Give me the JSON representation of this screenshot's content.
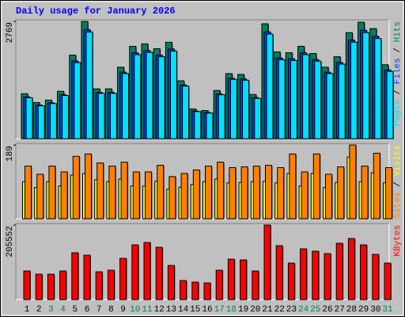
{
  "chart_data": [
    {
      "type": "bar",
      "title": "Daily usage for January 2026",
      "categories": [
        "1",
        "2",
        "3",
        "4",
        "5",
        "6",
        "7",
        "8",
        "9",
        "10",
        "11",
        "12",
        "13",
        "14",
        "15",
        "16",
        "17",
        "18",
        "19",
        "20",
        "21",
        "22",
        "23",
        "24",
        "25",
        "26",
        "27",
        "28",
        "29",
        "30",
        "31"
      ],
      "category_colors": [
        "#000000",
        "#000000",
        "#00805c",
        "#00805c",
        "#000000",
        "#000000",
        "#000000",
        "#000000",
        "#000000",
        "#00805c",
        "#00805c",
        "#000000",
        "#000000",
        "#000000",
        "#000000",
        "#000000",
        "#00805c",
        "#00805c",
        "#000000",
        "#000000",
        "#000000",
        "#000000",
        "#000000",
        "#00805c",
        "#00805c",
        "#000000",
        "#000000",
        "#000000",
        "#000000",
        "#000000",
        "#00805c"
      ],
      "legend_separator": "/",
      "ylim": [
        0,
        2769
      ],
      "yticks": [
        2769
      ],
      "series": [
        {
          "name": "Hits",
          "color": "#00805c",
          "values": [
            1062,
            853,
            910,
            1119,
            1972,
            2769,
            1176,
            1176,
            1688,
            2181,
            2238,
            2124,
            2276,
            1366,
            702,
            664,
            1138,
            1536,
            1517,
            1043,
            2712,
            2048,
            2029,
            2181,
            2010,
            1688,
            1934,
            2503,
            2750,
            2598,
            1745
          ]
        },
        {
          "name": "Files",
          "color": "#0040ff",
          "values": [
            988,
            793,
            846,
            1041,
            1834,
            2575,
            1094,
            1094,
            1570,
            2028,
            2081,
            1975,
            2117,
            1270,
            653,
            618,
            1058,
            1428,
            1411,
            970,
            2522,
            1905,
            1887,
            2028,
            1869,
            1570,
            1799,
            2328,
            2558,
            2416,
            1623
          ]
        },
        {
          "name": "Pages",
          "color": "#00e0ff",
          "values": [
            966,
            776,
            828,
            1018,
            1795,
            2520,
            1070,
            1070,
            1536,
            1985,
            2037,
            1933,
            2071,
            1243,
            639,
            604,
            1036,
            1398,
            1380,
            949,
            2468,
            1864,
            1846,
            1985,
            1829,
            1536,
            1760,
            2278,
            2503,
            2364,
            1588
          ]
        }
      ]
    },
    {
      "type": "bar",
      "legend_separator": "/",
      "ylim": [
        0,
        189
      ],
      "yticks": [
        189
      ],
      "series": [
        {
          "name": "Visits",
          "color": "#ffff00",
          "values": [
            95,
            80,
            95,
            84,
            112,
            116,
            100,
            95,
            102,
            84,
            84,
            96,
            76,
            81,
            88,
            95,
            102,
            92,
            93,
            95,
            96,
            92,
            116,
            84,
            116,
            80,
            93,
            158,
            95,
            118,
            92
          ]
        },
        {
          "name": "Sites",
          "color": "#ff8000",
          "values": [
            135,
            114,
            135,
            120,
            160,
            166,
            143,
            135,
            145,
            120,
            120,
            137,
            108,
            116,
            125,
            135,
            145,
            131,
            133,
            135,
            137,
            131,
            166,
            120,
            166,
            114,
            133,
            189,
            135,
            168,
            131
          ]
        }
      ]
    },
    {
      "type": "bar",
      "ylim": [
        0,
        205552
      ],
      "yticks": [
        205552
      ],
      "series": [
        {
          "name": "KBytes",
          "color": "#ff0000",
          "values": [
            78723,
            69975,
            69975,
            78723,
            129018,
            122456,
            76536,
            80910,
            113710,
            150884,
            157445,
            144324,
            94029,
            52481,
            48108,
            45921,
            80910,
            111523,
            109336,
            78723,
            205552,
            148697,
            100590,
            139950,
            133390,
            126831,
            155257,
            168378,
            150884,
            124644,
            100590
          ]
        }
      ]
    }
  ]
}
